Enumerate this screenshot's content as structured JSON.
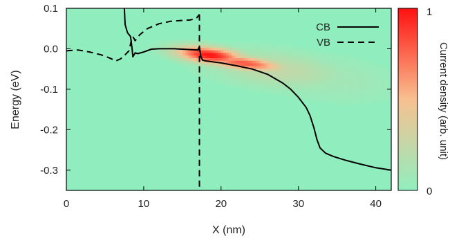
{
  "chart_data": {
    "type": "heatmap",
    "xlabel": "X (nm)",
    "ylabel": "Energy (eV)",
    "xlim": [
      0,
      42
    ],
    "ylim": [
      -0.35,
      0.1
    ],
    "x_ticks": [
      0,
      10,
      20,
      30,
      40
    ],
    "x_tick_labels": [
      "0",
      "10",
      "20",
      "30",
      "40"
    ],
    "y_ticks": [
      0.1,
      0.0,
      -0.1,
      -0.2,
      -0.3
    ],
    "y_tick_labels": [
      "0.1",
      "0.0",
      "-0.1",
      "-0.2",
      "-0.3"
    ],
    "grid": false,
    "legend_position": "top-right",
    "colorbar": {
      "label": "Current density (arb. unit)",
      "min_label": "0",
      "max_label": "1",
      "colors": [
        "#90eebe",
        "#f8c090",
        "#ff1010"
      ]
    },
    "heatmap": {
      "background_value": 0,
      "hotspots": [
        {
          "x": 18.5,
          "y": -0.015,
          "sx": 3.0,
          "sy": 0.014,
          "value": 1.0,
          "slope": -0.002
        },
        {
          "x": 23.0,
          "y": -0.035,
          "sx": 3.5,
          "sy": 0.012,
          "value": 0.8,
          "slope": -0.002
        },
        {
          "x": 27.0,
          "y": -0.05,
          "sx": 6.0,
          "sy": 0.03,
          "value": 0.25,
          "slope": -0.002
        },
        {
          "x": 33.0,
          "y": -0.07,
          "sx": 7.0,
          "sy": 0.04,
          "value": 0.1,
          "slope": -0.002
        }
      ]
    },
    "series": [
      {
        "name": "CB",
        "style": "solid",
        "segments": [
          [
            [
              7.5,
              0.1
            ],
            [
              7.6,
              0.06
            ],
            [
              7.9,
              0.04
            ],
            [
              8.3,
              0.03
            ],
            [
              8.5,
              0.0
            ],
            [
              8.6,
              -0.02
            ],
            [
              8.9,
              -0.01
            ],
            [
              9.2,
              -0.012
            ],
            [
              10.0,
              -0.008
            ],
            [
              11.0,
              -0.001
            ],
            [
              12.0,
              0.0
            ],
            [
              13.0,
              0.0
            ],
            [
              14.0,
              0.0
            ],
            [
              15.0,
              -0.001
            ],
            [
              16.0,
              -0.002
            ],
            [
              17.0,
              -0.003
            ],
            [
              17.2,
              0.005
            ],
            [
              17.4,
              -0.02
            ],
            [
              17.6,
              -0.028
            ],
            [
              18.0,
              -0.03
            ],
            [
              20.0,
              -0.035
            ],
            [
              22.0,
              -0.042
            ],
            [
              24.0,
              -0.05
            ],
            [
              26.0,
              -0.063
            ],
            [
              28.0,
              -0.085
            ],
            [
              29.0,
              -0.1
            ],
            [
              30.0,
              -0.12
            ],
            [
              31.0,
              -0.145
            ],
            [
              31.5,
              -0.165
            ],
            [
              32.0,
              -0.195
            ],
            [
              32.4,
              -0.225
            ],
            [
              32.8,
              -0.245
            ],
            [
              33.5,
              -0.258
            ],
            [
              34.5,
              -0.266
            ],
            [
              36.0,
              -0.275
            ],
            [
              38.0,
              -0.285
            ],
            [
              40.0,
              -0.294
            ],
            [
              42.0,
              -0.3
            ]
          ]
        ]
      },
      {
        "name": "VB",
        "style": "dashed",
        "segments": [
          [
            [
              0.0,
              -0.005
            ],
            [
              1.5,
              -0.003
            ],
            [
              3.0,
              -0.008
            ],
            [
              4.5,
              -0.015
            ],
            [
              5.5,
              -0.022
            ],
            [
              6.4,
              -0.03
            ],
            [
              7.0,
              -0.025
            ],
            [
              7.6,
              -0.015
            ],
            [
              8.1,
              -0.005
            ],
            [
              8.4,
              0.02
            ],
            [
              8.6,
              0.03
            ],
            [
              8.9,
              0.02
            ],
            [
              9.5,
              0.035
            ],
            [
              10.5,
              0.05
            ],
            [
              12.0,
              0.062
            ],
            [
              13.5,
              0.068
            ],
            [
              15.0,
              0.07
            ],
            [
              16.0,
              0.071
            ],
            [
              16.8,
              0.075
            ],
            [
              17.2,
              0.085
            ]
          ],
          [
            [
              17.2,
              0.085
            ],
            [
              17.2,
              0.04
            ],
            [
              17.2,
              0.0
            ],
            [
              17.2,
              -0.1
            ],
            [
              17.2,
              -0.2
            ],
            [
              17.2,
              -0.3
            ],
            [
              17.2,
              -0.35
            ]
          ]
        ]
      }
    ]
  }
}
